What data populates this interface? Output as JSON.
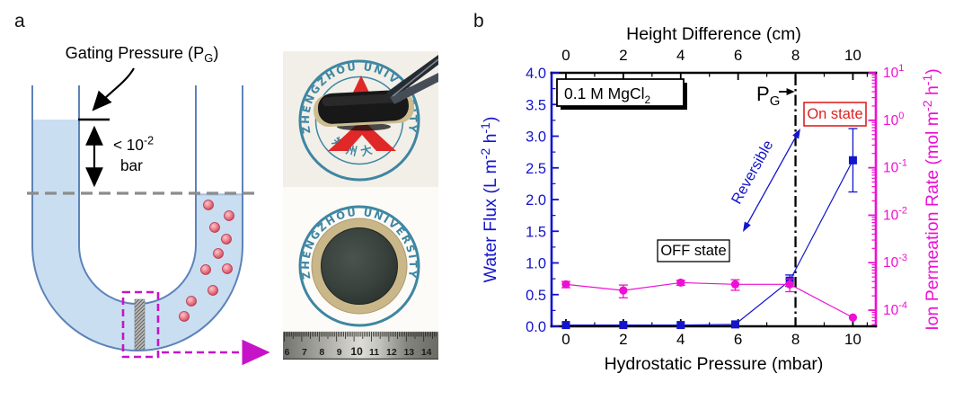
{
  "page": {
    "panel_a_label": "a",
    "panel_b_label": "b",
    "background": "#ffffff"
  },
  "panel_a": {
    "gating_label": {
      "prefix": "Gating Pressure (P",
      "sub": "G",
      "suffix": ")",
      "full": "Gating Pressure (PG)"
    },
    "pressure_note": {
      "base": "< 10",
      "exp": "-2",
      "unit": "bar",
      "full": "< 10⁻² bar"
    },
    "diagram_colors": {
      "liquid": "#cadef2",
      "tube_wall": "#5d83b8",
      "ion": "#d95668",
      "highlight_magenta": "#c713c7",
      "level_dash_gray": "#8c8c8c"
    },
    "photos": {
      "stamp_text": "ZHENGZHOU UNIVERSITY",
      "stamp_text_cn": "郑 州 大 学",
      "stamp_color": "#3e86a2",
      "logo_color": "#e02828",
      "ruler_numbers": [
        "6",
        "7",
        "8",
        "9",
        "10",
        "11",
        "12",
        "13",
        "14"
      ]
    }
  },
  "chart_data": {
    "type": "line",
    "top_axis_title": "Height Difference (cm)",
    "xlabel": "Hydrostatic Pressure (mbar)",
    "ylabel_left": "Water Flux (L m⁻² h⁻¹)",
    "ylabel_left_parts": [
      [
        "Water Flux (L m",
        0
      ],
      [
        "-2",
        1
      ],
      [
        " h",
        0
      ],
      [
        "-1",
        1
      ],
      [
        ")",
        0
      ]
    ],
    "ylabel_right": "Ion Permeation Rate (mol m⁻² h⁻¹)",
    "ylabel_right_parts": [
      [
        "Ion Permeation Rate (mol m",
        0
      ],
      [
        "-2",
        1
      ],
      [
        " h",
        0
      ],
      [
        "-1",
        1
      ],
      [
        ")",
        0
      ]
    ],
    "x_major_ticks": [
      0,
      2,
      4,
      6,
      8,
      10
    ],
    "x_minor_ticks": [
      1,
      3,
      5,
      7,
      9,
      10.5
    ],
    "xlim": [
      -0.5,
      10.8
    ],
    "ylim_left": [
      0,
      4
    ],
    "y_major_ticks_left": [
      "0.0",
      "0.5",
      "1.0",
      "1.5",
      "2.0",
      "2.5",
      "3.0",
      "3.5",
      "4.0"
    ],
    "ylim_right_log_exp": [
      -4.34,
      1
    ],
    "y_major_ticks_right_exp": [
      1,
      0,
      -1,
      -2,
      -3,
      -4
    ],
    "axis_colors": {
      "left": "#1414cc",
      "right": "#ee0fd4",
      "frame": "#000000"
    },
    "grid": false,
    "series": [
      {
        "name": "Water Flux",
        "axis": "left",
        "color": "#1414cc",
        "marker": "square",
        "x": [
          0,
          2,
          4,
          5.9,
          7.8,
          10
        ],
        "y": [
          0.02,
          0.02,
          0.02,
          0.03,
          0.72,
          2.62
        ],
        "yerr": [
          0,
          0,
          0,
          0,
          0.09,
          0.5
        ]
      },
      {
        "name": "Ion Permeation Rate",
        "axis": "right",
        "color": "#ee0fd4",
        "marker": "circle",
        "x": [
          0,
          2,
          4,
          5.9,
          7.8,
          10
        ],
        "y": [
          0.00035,
          0.00026,
          0.00038,
          0.00035,
          0.00035,
          7e-05
        ],
        "yerr_rel": [
          0.15,
          0.3,
          0.12,
          0.25,
          0.3,
          0
        ]
      }
    ],
    "annotations": {
      "legend": {
        "label": "0.1 M MgCl₂",
        "parts": [
          [
            "0.1 M MgCl",
            0
          ],
          [
            "2",
            2
          ]
        ]
      },
      "gating_pressure": {
        "label": "PG",
        "parts": [
          [
            "P",
            0
          ],
          [
            "G",
            2
          ]
        ],
        "line_x": 8.0
      },
      "on_state": "On state",
      "on_state_color": "#dd2222",
      "off_state": "OFF state",
      "reversible": "Reversible"
    }
  }
}
